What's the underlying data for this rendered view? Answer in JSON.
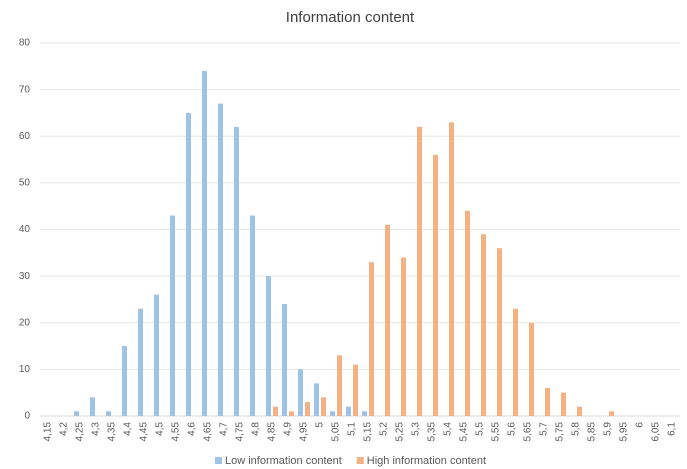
{
  "chart_data": {
    "type": "bar",
    "title": "Information content",
    "categories": [
      "4,15",
      "4,2",
      "4,25",
      "4,3",
      "4,35",
      "4,4",
      "4,45",
      "4,5",
      "4,55",
      "4,6",
      "4,65",
      "4,7",
      "4,75",
      "4,8",
      "4,85",
      "4,9",
      "4,95",
      "5",
      "5,05",
      "5,1",
      "5,15",
      "5,2",
      "5,25",
      "5,3",
      "5,35",
      "5,4",
      "5,45",
      "5,5",
      "5,55",
      "5,6",
      "5,65",
      "5,7",
      "5,75",
      "5,8",
      "5,85",
      "5,9",
      "5,95",
      "6",
      "6,05",
      "6,1"
    ],
    "series": [
      {
        "name": "Low information content",
        "color": "#9dc3e6",
        "values": [
          0,
          0,
          1,
          4,
          1,
          15,
          23,
          26,
          43,
          65,
          74,
          67,
          62,
          43,
          30,
          24,
          10,
          7,
          1,
          2,
          1,
          0,
          0,
          0,
          0,
          0,
          0,
          0,
          0,
          0,
          0,
          0,
          0,
          0,
          0,
          0,
          0,
          0,
          0,
          0
        ]
      },
      {
        "name": "High information content",
        "color": "#f4b183",
        "values": [
          0,
          0,
          0,
          0,
          0,
          0,
          0,
          0,
          0,
          0,
          0,
          0,
          0,
          0,
          2,
          1,
          3,
          4,
          13,
          11,
          33,
          41,
          34,
          62,
          56,
          63,
          44,
          39,
          36,
          23,
          20,
          6,
          5,
          2,
          0,
          1,
          0,
          0,
          0,
          0
        ]
      }
    ],
    "ylim": [
      0,
      80
    ],
    "yticks": [
      0,
      10,
      20,
      30,
      40,
      50,
      60,
      70,
      80
    ],
    "grid": true,
    "legend": "bottom"
  }
}
